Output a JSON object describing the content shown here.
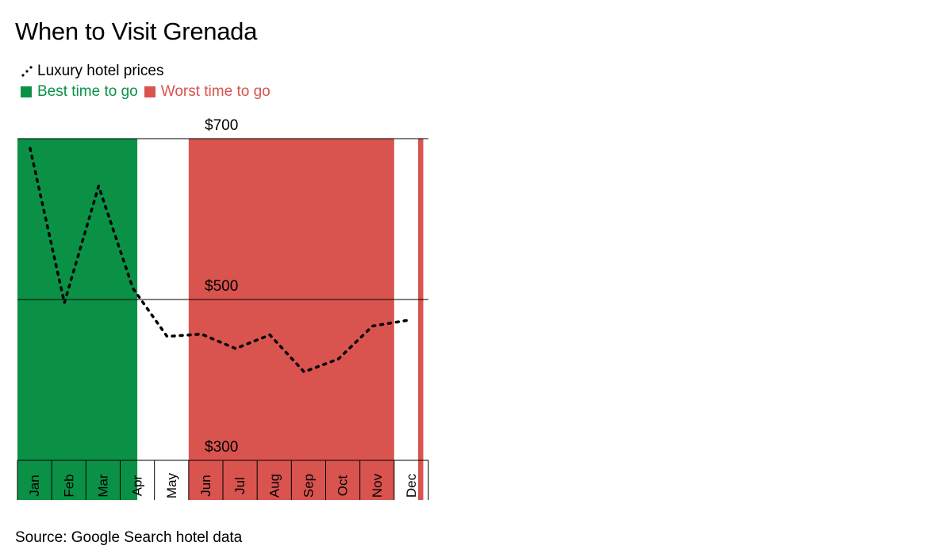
{
  "title": "When to Visit Grenada",
  "legend": {
    "line_label": "Luxury hotel prices",
    "best_label": "Best time to go",
    "worst_label": "Worst time to go"
  },
  "colors": {
    "best": "#0a9146",
    "worst": "#d9534f",
    "line": "#000000",
    "grid": "#000000",
    "best_text": "#0a9146",
    "worst_text": "#d9534f"
  },
  "source": "Source: Google Search hotel data",
  "chart_data": {
    "type": "line",
    "title": "When to Visit Grenada",
    "xlabel": "",
    "ylabel": "",
    "ylim": [
      300,
      700
    ],
    "yticks": [
      700,
      500,
      300
    ],
    "ytick_labels": [
      "$700",
      "$500",
      "$300"
    ],
    "months": [
      "Jan",
      "Feb",
      "Mar",
      "Apr",
      "May",
      "Jun",
      "Jul",
      "Aug",
      "Sep",
      "Oct",
      "Nov",
      "Dec"
    ],
    "x_domain": [
      0,
      12
    ],
    "series": [
      {
        "name": "Luxury hotel prices",
        "x": [
          0.37,
          1.37,
          2.37,
          3.37,
          4.37,
          5.37,
          6.37,
          7.37,
          8.37,
          9.37,
          10.37,
          11.37
        ],
        "values": [
          688,
          496,
          641,
          514,
          454,
          457,
          439,
          456,
          410,
          426,
          467,
          474
        ]
      }
    ],
    "zones": [
      {
        "kind": "best",
        "label": "Best time to go",
        "start": 0,
        "end": 3.5
      },
      {
        "kind": "worst",
        "label": "Worst time to go",
        "start": 5.0,
        "end": 11.0
      },
      {
        "kind": "worst",
        "label": "Worst time to go",
        "start": 11.7,
        "end": 11.85
      }
    ]
  }
}
